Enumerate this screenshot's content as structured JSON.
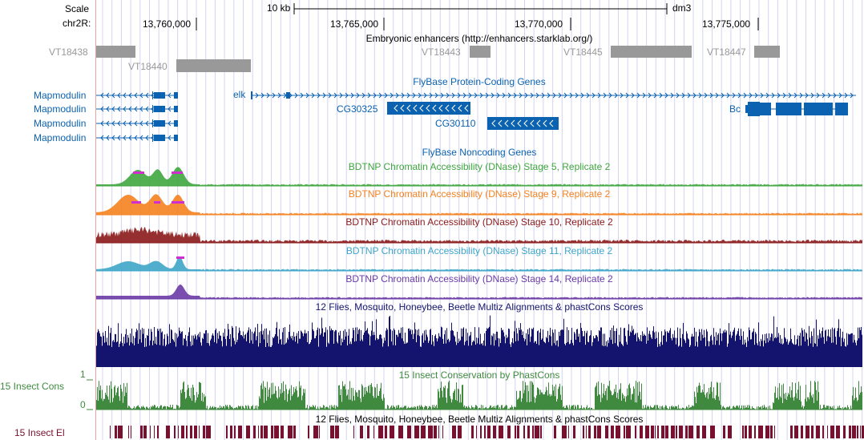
{
  "ruler": {
    "scale_label": "Scale",
    "chrom_label": "chr2R:",
    "scale_bar_label": "10 kb",
    "assembly": "dm3",
    "ticks": [
      "13,760,000",
      "13,765,000",
      "13,770,000",
      "13,775,000"
    ]
  },
  "enhancers": {
    "title": "Embryonic enhancers (http://enhancers.starklab.org/)",
    "items": [
      "VT18438",
      "VT18440",
      "VT18443",
      "VT18445",
      "VT18447"
    ]
  },
  "genes": {
    "title": "FlyBase Protein-Coding Genes",
    "labels": [
      "Mapmodulin",
      "Mapmodulin",
      "Mapmodulin",
      "Mapmodulin",
      "elk",
      "CG30325",
      "CG30110",
      "Bc"
    ]
  },
  "noncoding": {
    "title": "FlyBase Noncoding Genes"
  },
  "dnase": [
    {
      "title": "BDTNP Chromatin Accessibility (DNase) Stage 5, Replicate 2",
      "color": "#3fa63f"
    },
    {
      "title": "BDTNP Chromatin Accessibility (DNase) Stage 9, Replicate 2",
      "color": "#f58220"
    },
    {
      "title": "BDTNP Chromatin Accessibility (DNase) Stage 10, Replicate 2",
      "color": "#8b1a1a"
    },
    {
      "title": "BDTNP Chromatin Accessibility (DNase) Stage 11, Replicate 2",
      "color": "#3ea6c8"
    },
    {
      "title": "BDTNP Chromatin Accessibility (DNase) Stage 14, Replicate 2",
      "color": "#6a3ba6"
    }
  ],
  "multiz": {
    "title": "12 Flies, Mosquito, Honeybee, Beetle Multiz Alignments & phastCons Scores",
    "color": "#14146e"
  },
  "phastcons": {
    "title": "15 Insect Conservation by PhastCons",
    "side_label": "15 Insect Cons",
    "y_max_label": "1",
    "y_min_label": "0",
    "color": "#3f8a3f"
  },
  "elements": {
    "title": "12 Flies, Mosquito, Honeybee, Beetle Multiz Alignments & phastCons Scores",
    "side_label": "15 Insect El",
    "color": "#7a1030"
  },
  "colors": {
    "gene": "#0b62b0",
    "enhancer": "#999999",
    "grid": "#d4d4f0"
  }
}
